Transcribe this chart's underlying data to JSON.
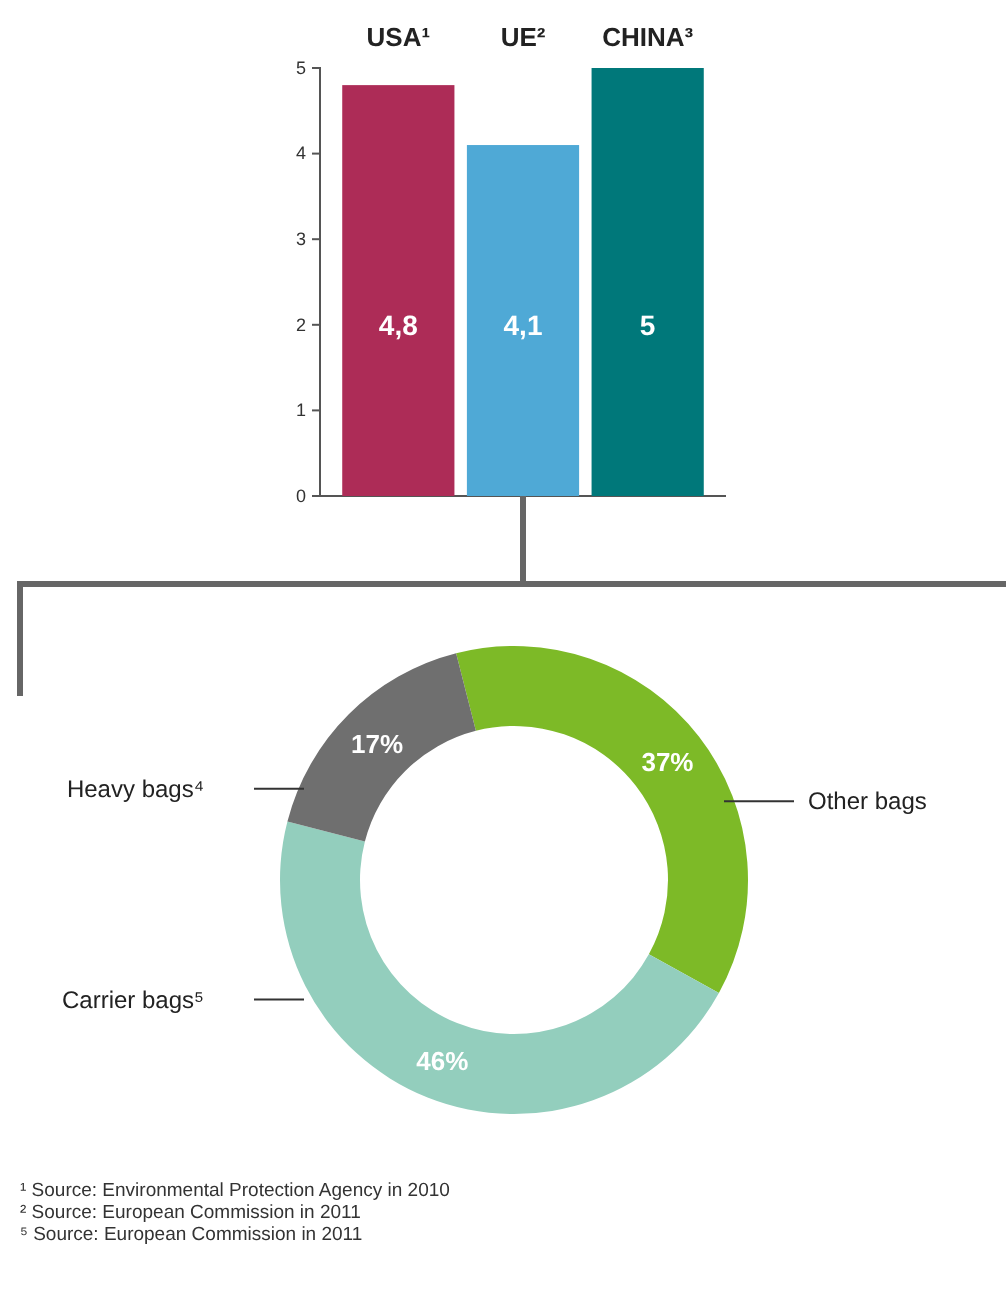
{
  "chart_data": [
    {
      "type": "bar",
      "categories": [
        "USA¹",
        "UE²",
        "CHINA³"
      ],
      "values": [
        4.8,
        4.1,
        5
      ],
      "colors": [
        "#ad2c57",
        "#4fa9d6",
        "#00787a"
      ],
      "value_labels": [
        "4,8",
        "4,1",
        "5"
      ],
      "ylim": [
        0,
        5
      ],
      "yticks": [
        0,
        1,
        2,
        3,
        4,
        5
      ],
      "grid": false
    },
    {
      "type": "donut",
      "categories": [
        "Other bags",
        "Carrier bags⁵",
        "Heavy bags⁴"
      ],
      "values": [
        37,
        46,
        17
      ],
      "colors": [
        "#7dba27",
        "#93cebd",
        "#6f6f6f"
      ],
      "value_labels": [
        "37%",
        "46%",
        "17%"
      ],
      "annotations": [
        "¹ Source: Environmental Protection Agency in 2010",
        "² Source: European Commission in 2011",
        "⁵ Source: European Commission in 2011"
      ]
    }
  ]
}
